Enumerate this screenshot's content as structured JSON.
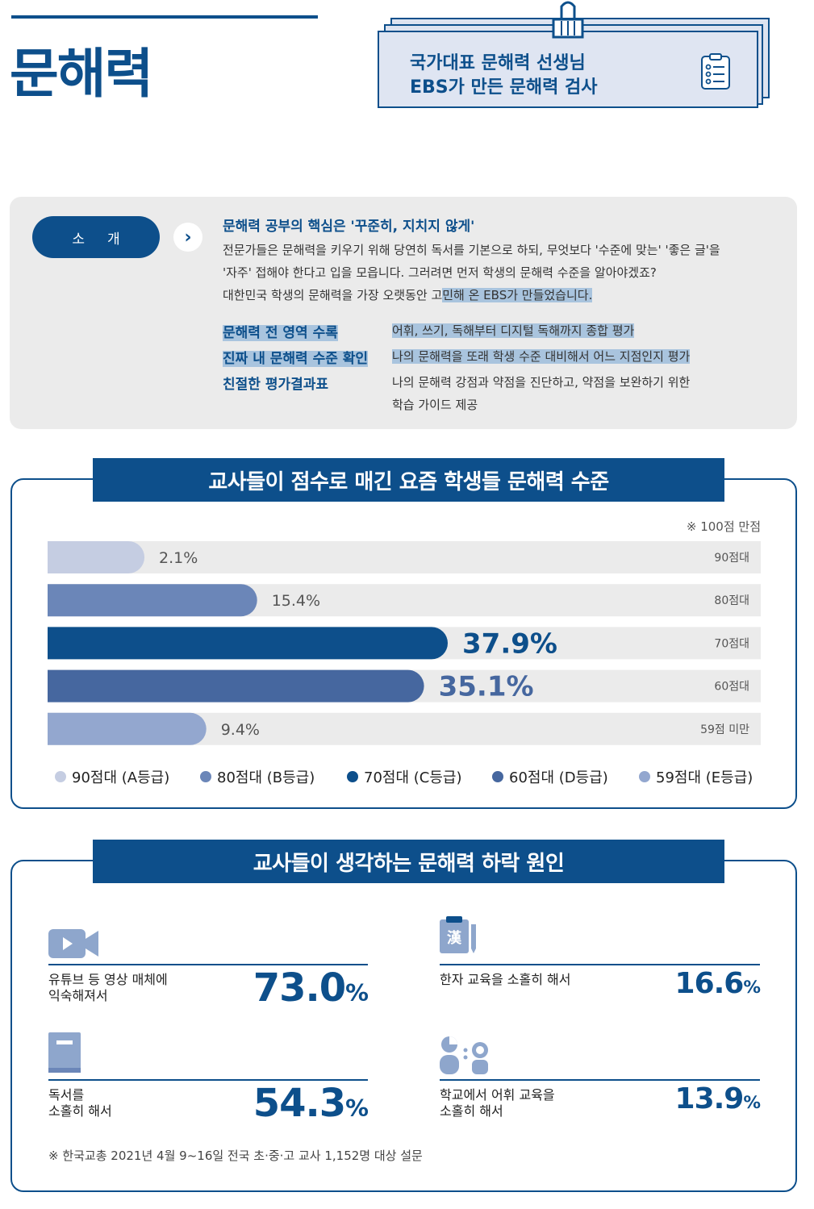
{
  "header": {
    "title": "문해력",
    "card_line1": "국가대표 문해력 선생님",
    "card_line2": "EBS가 만든 문해력 검사"
  },
  "intro": {
    "pill": "소개",
    "heading": "문해력 공부의 핵심은 '꾸준히, 지치지 않게'",
    "body1": "전문가들은 문해력을 키우기 위해 당연히 독서를 기본으로 하되, 무엇보다 '수준에 맞는'  '좋은 글'을",
    "body2": "'자주' 접해야 한다고 입을 모읍니다. 그러려면 먼저 학생의 문해력 수준을 알아야겠죠?",
    "body3a": "대한민국 학생의 문해력을 가장 오랫동안 고",
    "body3b": "민해 온 EBS가 만들었습니다.",
    "features": [
      {
        "title": "문해력 전 영역 수록",
        "desc": "어휘, 쓰기, 독해부터 디지털 독해까지 종합 평가"
      },
      {
        "title": "진짜 내 문해력 수준 확인",
        "desc": "나의 문해력을 또래 학생 수준 대비해서 어느 지점인지 평가"
      },
      {
        "title": "친절한 평가결과표",
        "desc": "나의 문해력 강점과 약점을 진단하고, 약점을 보완하기 위한",
        "desc2": "학습 가이드 제공"
      }
    ]
  },
  "score_section": {
    "banner": "교사들이 점수로 매긴 요즘 학생들 문해력 수준",
    "note": "※ 100점 만점"
  },
  "chart_data": {
    "type": "bar",
    "orientation": "horizontal",
    "categories": [
      "90점대",
      "80점대",
      "70점대",
      "60점대",
      "59점 미만"
    ],
    "values": [
      2.1,
      15.4,
      37.9,
      35.1,
      9.4
    ],
    "value_labels": [
      "2.1%",
      "15.4%",
      "37.9%",
      "35.1%",
      "9.4%"
    ],
    "colors": [
      "#c5cde2",
      "#6b86b8",
      "#0d4f8b",
      "#46679f",
      "#93a7cf"
    ],
    "legend": [
      "90점대 (A등급)",
      "80점대 (B등급)",
      "70점대 (C등급)",
      "60점대 (D등급)",
      "59점대 (E등급)"
    ],
    "legend_position": "bottom",
    "xlim": [
      0,
      100
    ],
    "grid": false
  },
  "cause_section": {
    "banner": "교사들이 생각하는 문해력 하락 원인",
    "causes": [
      {
        "label1": "유튜브 등 영상 매체에",
        "label2": "익숙해져서",
        "value": "73.0",
        "icon": "video-camera-icon"
      },
      {
        "label1": "한자 교육을 소홀히 해서",
        "label2": "",
        "value": "16.6",
        "icon": "hanja-notepad-icon"
      },
      {
        "label1": "독서를",
        "label2": "소홀히 해서",
        "value": "54.3",
        "icon": "book-icon"
      },
      {
        "label1": "학교에서 어휘 교육을",
        "label2": "소홀히 해서",
        "value": "13.9",
        "icon": "teacher-student-icon"
      }
    ],
    "pct_sign": "%",
    "hanja_char": "漢",
    "footnote": "※ 한국교총 2021년 4월 9~16일 전국 초·중·고 교사 1,152명 대상 설문"
  }
}
